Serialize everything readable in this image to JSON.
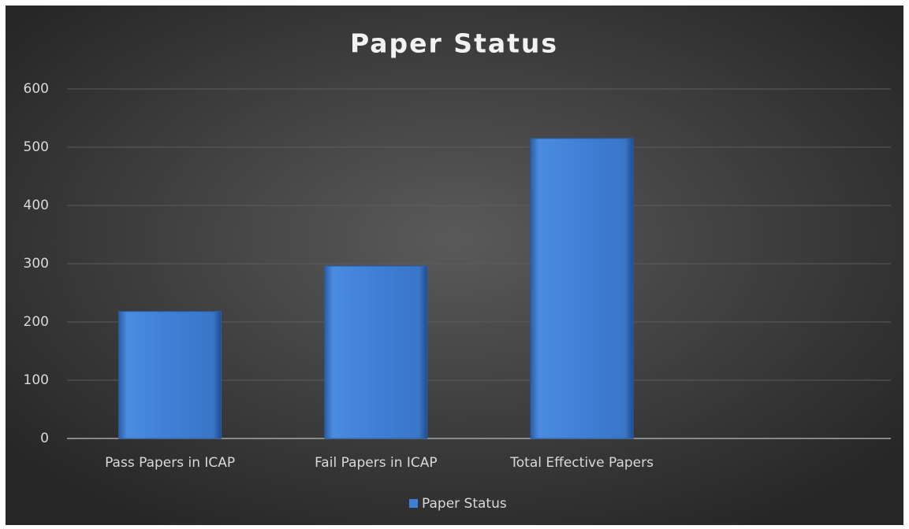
{
  "chart_data": {
    "type": "bar",
    "title": "Paper Status",
    "categories": [
      "Pass Papers in ICAP",
      "Fail Papers in ICAP",
      "Total Effective Papers",
      null
    ],
    "series": [
      {
        "name": "Paper Status",
        "color": "#3f7fd6",
        "values": [
          218,
          296,
          515,
          null
        ]
      }
    ],
    "ylim": [
      0,
      600
    ],
    "yticks": [
      0,
      100,
      200,
      300,
      400,
      500,
      600
    ],
    "grid": true,
    "legend": "bottom"
  }
}
